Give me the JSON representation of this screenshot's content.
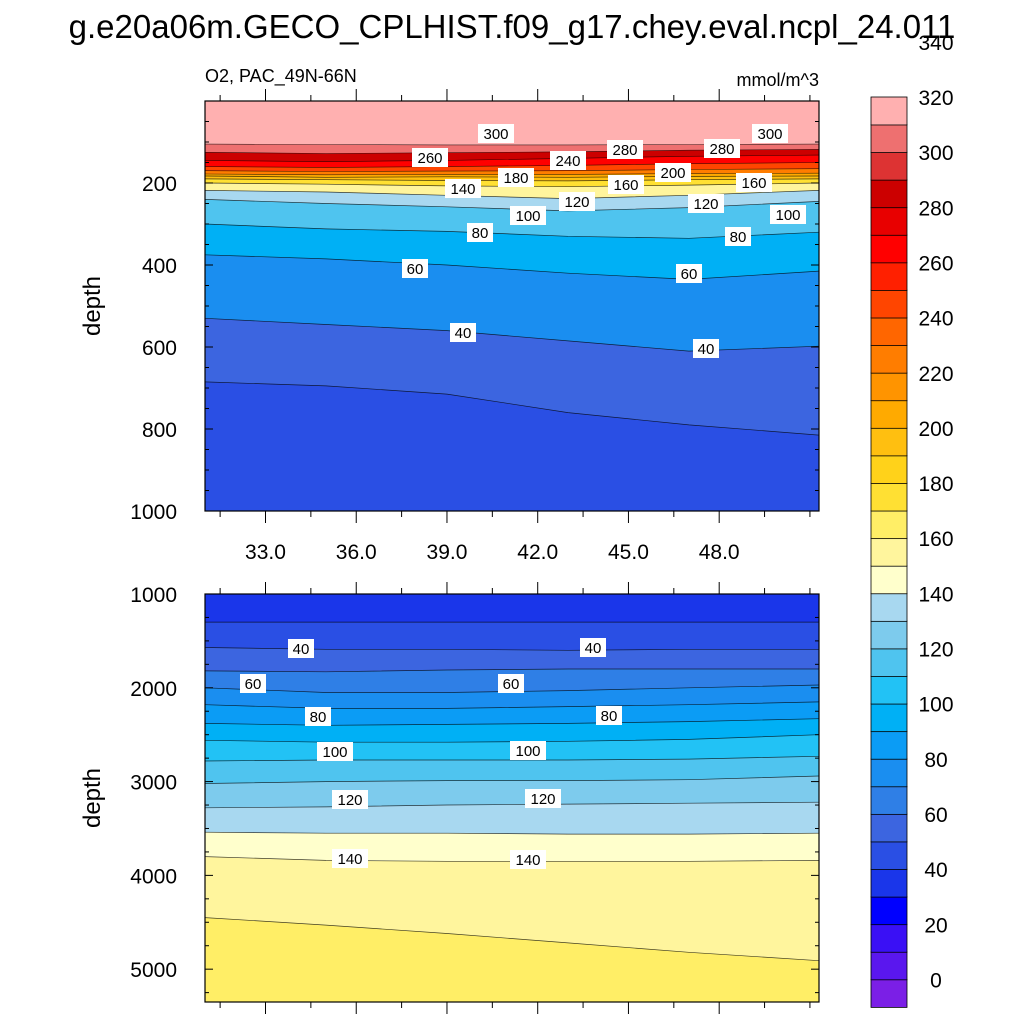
{
  "page_title": "g.e20a06m.GECO_CPLHIST.f09_g17.chey.eval.ncpl_24.011",
  "subtitle_left": "O2, PAC_49N-66N",
  "subtitle_right": "mmol/m^3",
  "colors": {
    "levels": [
      "#7b1fe6",
      "#5a17ee",
      "#3a10f5",
      "#0000ff",
      "#1a36ea",
      "#2a4fe4",
      "#3c65e0",
      "#2f7fe6",
      "#1a8ef0",
      "#0b9cf5",
      "#00b0f5",
      "#22c2f5",
      "#4fc4ef",
      "#7dcbed",
      "#a8d8f0",
      "#ffffcc",
      "#fff59d",
      "#ffee66",
      "#ffe033",
      "#ffd21a",
      "#ffbf10",
      "#ffaa00",
      "#ff9400",
      "#ff7d00",
      "#ff6600",
      "#ff4500",
      "#ff2000",
      "#ff0000",
      "#e80000",
      "#cc0000",
      "#dd3333",
      "#ee7070",
      "#ffb0b0"
    ]
  },
  "chart_data": [
    {
      "type": "contour",
      "panel": "upper",
      "xlabel": "",
      "ylabel": "depth",
      "xlim": [
        31.0,
        51.3
      ],
      "ylim": [
        1000,
        0
      ],
      "xticks": [
        "33.0",
        "36.0",
        "39.0",
        "42.0",
        "45.0",
        "48.0"
      ],
      "yticks": [
        "200",
        "400",
        "600",
        "800",
        "1000"
      ],
      "contour_labels": [
        "300",
        "260",
        "240",
        "280",
        "280",
        "300",
        "180",
        "140",
        "160",
        "200",
        "160",
        "120",
        "120",
        "100",
        "100",
        "80",
        "80",
        "60",
        "60",
        "40",
        "40"
      ],
      "contours": [
        {
          "level": 180,
          "depths": [
            183,
            186,
            185,
            186,
            184,
            183
          ]
        },
        {
          "level": 160,
          "depths": [
            190,
            192,
            194,
            195,
            192,
            190
          ]
        },
        {
          "level": 140,
          "depths": [
            200,
            203,
            207,
            209,
            205,
            200
          ]
        },
        {
          "level": 120,
          "depths": [
            218,
            222,
            230,
            238,
            230,
            218
          ]
        },
        {
          "level": 100,
          "depths": [
            240,
            250,
            258,
            268,
            260,
            245
          ]
        },
        {
          "level": 80,
          "depths": [
            300,
            312,
            318,
            330,
            335,
            320
          ]
        },
        {
          "level": 60,
          "depths": [
            375,
            385,
            400,
            420,
            435,
            415
          ]
        },
        {
          "level": 40,
          "depths": [
            530,
            545,
            560,
            585,
            610,
            598
          ]
        },
        {
          "level": 30,
          "depths": [
            685,
            695,
            715,
            760,
            790,
            815
          ]
        }
      ]
    },
    {
      "type": "contour",
      "panel": "lower",
      "xlabel": "",
      "ylabel": "depth",
      "xlim": [
        31.0,
        51.3
      ],
      "ylim": [
        5350,
        1000
      ],
      "xticks": [],
      "yticks": [
        "1000",
        "2000",
        "3000",
        "4000",
        "5000"
      ],
      "contour_labels": [
        "40",
        "40",
        "60",
        "60",
        "80",
        "80",
        "100",
        "100",
        "120",
        "120",
        "140",
        "140"
      ],
      "contours": [
        {
          "level": 30,
          "depths": [
            1300,
            1300,
            1300,
            1300,
            1300,
            1300
          ]
        },
        {
          "level": 40,
          "depths": [
            1570,
            1590,
            1590,
            1600,
            1590,
            1590
          ]
        },
        {
          "level": 50,
          "depths": [
            1820,
            1830,
            1810,
            1800,
            1800,
            1800
          ]
        },
        {
          "level": 60,
          "depths": [
            2000,
            2050,
            2050,
            2030,
            2000,
            1970
          ]
        },
        {
          "level": 70,
          "depths": [
            2180,
            2220,
            2220,
            2200,
            2180,
            2150
          ]
        },
        {
          "level": 80,
          "depths": [
            2380,
            2400,
            2390,
            2380,
            2360,
            2330
          ]
        },
        {
          "level": 90,
          "depths": [
            2560,
            2580,
            2580,
            2570,
            2550,
            2500
          ]
        },
        {
          "level": 100,
          "depths": [
            2780,
            2770,
            2770,
            2770,
            2760,
            2730
          ]
        },
        {
          "level": 110,
          "depths": [
            3020,
            3000,
            2990,
            2990,
            2980,
            2940
          ]
        },
        {
          "level": 120,
          "depths": [
            3280,
            3270,
            3250,
            3240,
            3230,
            3220
          ]
        },
        {
          "level": 130,
          "depths": [
            3540,
            3550,
            3550,
            3560,
            3560,
            3550
          ]
        },
        {
          "level": 140,
          "depths": [
            3800,
            3840,
            3850,
            3850,
            3850,
            3840
          ]
        },
        {
          "level": 150,
          "depths": [
            4450,
            4530,
            4620,
            4720,
            4820,
            4910
          ]
        }
      ]
    },
    {
      "type": "colorbar",
      "tick_labels": [
        "0",
        "20",
        "40",
        "60",
        "80",
        "100",
        "120",
        "140",
        "160",
        "180",
        "200",
        "220",
        "240",
        "260",
        "280",
        "300",
        "320",
        "340"
      ]
    }
  ]
}
